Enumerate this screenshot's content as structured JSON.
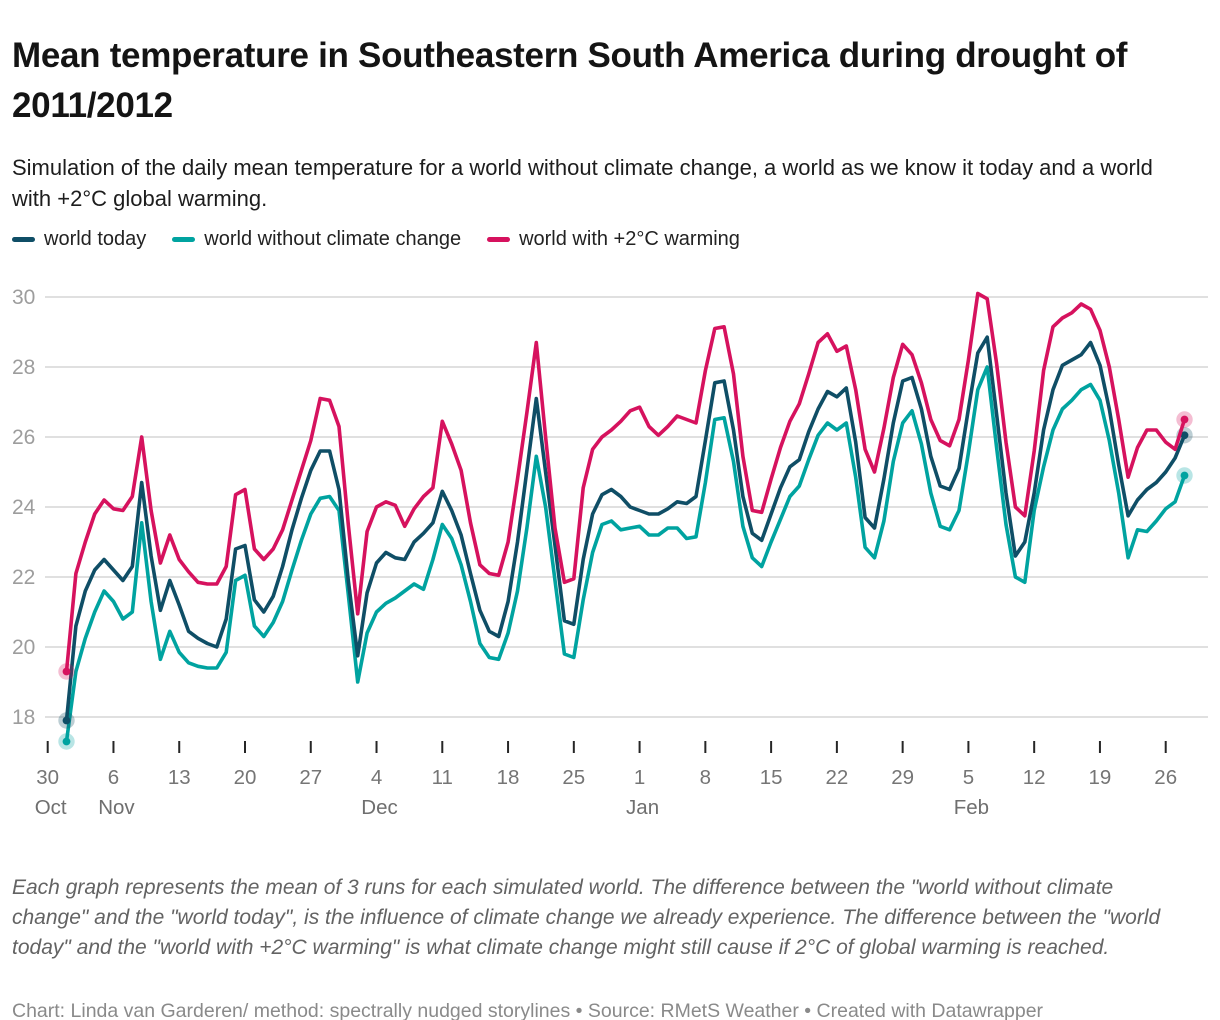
{
  "header": {
    "title": "Mean temperature in Southeastern South America during drought of 2011/2012",
    "description": "Simulation of the daily mean temperature for a world without climate change, a world as we know it today and a world with +2°C global warming."
  },
  "legend": {
    "items": [
      {
        "label": "world today",
        "color": "#0f4e66"
      },
      {
        "label": "world without climate change",
        "color": "#00a3a0"
      },
      {
        "label": "world with +2°C warming",
        "color": "#d6125e"
      }
    ]
  },
  "chart_data": {
    "type": "line",
    "title": "Mean temperature in Southeastern South America during drought of 2011/2012",
    "xlabel": "",
    "ylabel": "",
    "start_date": "2011-11-01",
    "end_date": "2012-02-28",
    "n_days": 120,
    "grid": "horizontal",
    "legend_position": "top",
    "ylim": [
      17.0,
      30.4
    ],
    "y_axis": {
      "ticks": [
        18,
        20,
        22,
        24,
        26,
        28,
        30
      ],
      "tick_labels": [
        "18",
        "20",
        "22",
        "24",
        "26",
        "28",
        "30"
      ]
    },
    "x_axis": {
      "tick_interval_days": 7,
      "first_tick_date": "2011-10-30",
      "tick_day_labels": [
        "30",
        "6",
        "13",
        "20",
        "27",
        "4",
        "11",
        "18",
        "25",
        "1",
        "8",
        "15",
        "22",
        "29",
        "5",
        "12",
        "19",
        "26"
      ],
      "month_labels": [
        {
          "label": "Oct",
          "tick": 0
        },
        {
          "label": "Nov",
          "tick": 1
        },
        {
          "label": "Dec",
          "tick": 5
        },
        {
          "label": "Jan",
          "tick": 9
        },
        {
          "label": "Feb",
          "tick": 14
        }
      ]
    },
    "series": [
      {
        "name": "world today",
        "color": "#0f4e66",
        "values": [
          17.9,
          20.6,
          21.6,
          22.2,
          22.5,
          22.2,
          21.9,
          22.3,
          24.7,
          22.6,
          21.05,
          21.9,
          21.2,
          20.45,
          20.25,
          20.1,
          20.0,
          20.8,
          22.8,
          22.9,
          21.35,
          21.0,
          21.45,
          22.3,
          23.35,
          24.25,
          25.05,
          25.6,
          25.6,
          24.5,
          21.9,
          19.75,
          21.55,
          22.4,
          22.7,
          22.55,
          22.5,
          23.0,
          23.25,
          23.55,
          24.45,
          23.9,
          23.2,
          22.1,
          21.05,
          20.45,
          20.3,
          21.3,
          23.0,
          25.05,
          27.1,
          25.0,
          22.9,
          20.75,
          20.65,
          22.5,
          23.8,
          24.35,
          24.5,
          24.3,
          24.0,
          23.9,
          23.8,
          23.8,
          23.95,
          24.15,
          24.1,
          24.3,
          25.9,
          27.55,
          27.6,
          26.2,
          24.3,
          23.25,
          23.05,
          23.8,
          24.55,
          25.15,
          25.35,
          26.15,
          26.8,
          27.3,
          27.15,
          27.4,
          25.85,
          23.7,
          23.4,
          24.8,
          26.4,
          27.6,
          27.7,
          26.8,
          25.45,
          24.6,
          24.5,
          25.1,
          26.8,
          28.4,
          28.85,
          26.65,
          24.4,
          22.6,
          23.0,
          24.4,
          26.2,
          27.35,
          28.05,
          28.2,
          28.35,
          28.7,
          28.05,
          26.8,
          25.2,
          23.75,
          24.2,
          24.5,
          24.7,
          25.0,
          25.4,
          26.05
        ]
      },
      {
        "name": "world without climate change",
        "color": "#00a3a0",
        "values": [
          17.3,
          19.3,
          20.25,
          21.0,
          21.6,
          21.3,
          20.8,
          21.0,
          23.55,
          21.3,
          19.65,
          20.45,
          19.85,
          19.55,
          19.45,
          19.4,
          19.4,
          19.85,
          21.9,
          22.05,
          20.6,
          20.3,
          20.7,
          21.3,
          22.2,
          23.05,
          23.8,
          24.25,
          24.3,
          23.9,
          21.5,
          19.0,
          20.4,
          21.0,
          21.25,
          21.4,
          21.6,
          21.8,
          21.65,
          22.5,
          23.5,
          23.1,
          22.35,
          21.3,
          20.1,
          19.7,
          19.65,
          20.4,
          21.6,
          23.4,
          25.45,
          24.0,
          21.9,
          19.8,
          19.7,
          21.35,
          22.7,
          23.5,
          23.6,
          23.35,
          23.4,
          23.45,
          23.2,
          23.2,
          23.4,
          23.4,
          23.1,
          23.15,
          24.7,
          26.5,
          26.55,
          25.3,
          23.45,
          22.55,
          22.3,
          23.0,
          23.65,
          24.3,
          24.6,
          25.35,
          26.05,
          26.4,
          26.2,
          26.4,
          24.85,
          22.85,
          22.55,
          23.6,
          25.3,
          26.4,
          26.75,
          25.8,
          24.4,
          23.45,
          23.35,
          23.9,
          25.55,
          27.35,
          28.0,
          25.7,
          23.5,
          22.0,
          21.85,
          23.9,
          25.15,
          26.2,
          26.8,
          27.05,
          27.35,
          27.5,
          27.05,
          25.9,
          24.4,
          22.55,
          23.35,
          23.3,
          23.6,
          23.95,
          24.15,
          24.9
        ]
      },
      {
        "name": "world with +2°C warming",
        "color": "#d6125e",
        "values": [
          19.3,
          22.1,
          23.0,
          23.8,
          24.2,
          23.95,
          23.9,
          24.3,
          26.0,
          23.9,
          22.4,
          23.2,
          22.5,
          22.15,
          21.85,
          21.8,
          21.8,
          22.3,
          24.35,
          24.5,
          22.8,
          22.5,
          22.8,
          23.35,
          24.2,
          25.05,
          25.9,
          27.1,
          27.05,
          26.3,
          23.5,
          20.95,
          23.3,
          24.0,
          24.15,
          24.05,
          23.45,
          23.95,
          24.3,
          24.55,
          26.45,
          25.8,
          25.05,
          23.55,
          22.35,
          22.1,
          22.05,
          23.0,
          24.8,
          26.7,
          28.7,
          26.0,
          23.4,
          21.85,
          21.95,
          24.55,
          25.65,
          26.0,
          26.2,
          26.45,
          26.75,
          26.85,
          26.3,
          26.05,
          26.3,
          26.6,
          26.5,
          26.4,
          27.9,
          29.1,
          29.15,
          27.8,
          25.45,
          23.9,
          23.85,
          24.8,
          25.7,
          26.45,
          26.95,
          27.8,
          28.7,
          28.95,
          28.45,
          28.6,
          27.35,
          25.65,
          25.0,
          26.25,
          27.7,
          28.65,
          28.35,
          27.55,
          26.5,
          25.9,
          25.75,
          26.5,
          28.2,
          30.1,
          29.95,
          28.1,
          25.85,
          24.0,
          23.75,
          25.6,
          27.9,
          29.15,
          29.4,
          29.55,
          29.8,
          29.65,
          29.05,
          28.0,
          26.5,
          24.85,
          25.7,
          26.2,
          26.2,
          25.85,
          25.65,
          26.5
        ]
      }
    ]
  },
  "notes": "Each graph represents the mean of 3 runs for each simulated world. The difference between the \"world without climate change\" and the \"world today\", is the influence of climate change we already experience. The difference between the \"world today\" and the \"world with +2°C warming\" is what climate change might still cause if 2°C of global warming is reached.",
  "caption": "Chart: Linda van Garderen/ method: spectrally nudged storylines • Source: RMetS Weather • Created with Datawrapper"
}
